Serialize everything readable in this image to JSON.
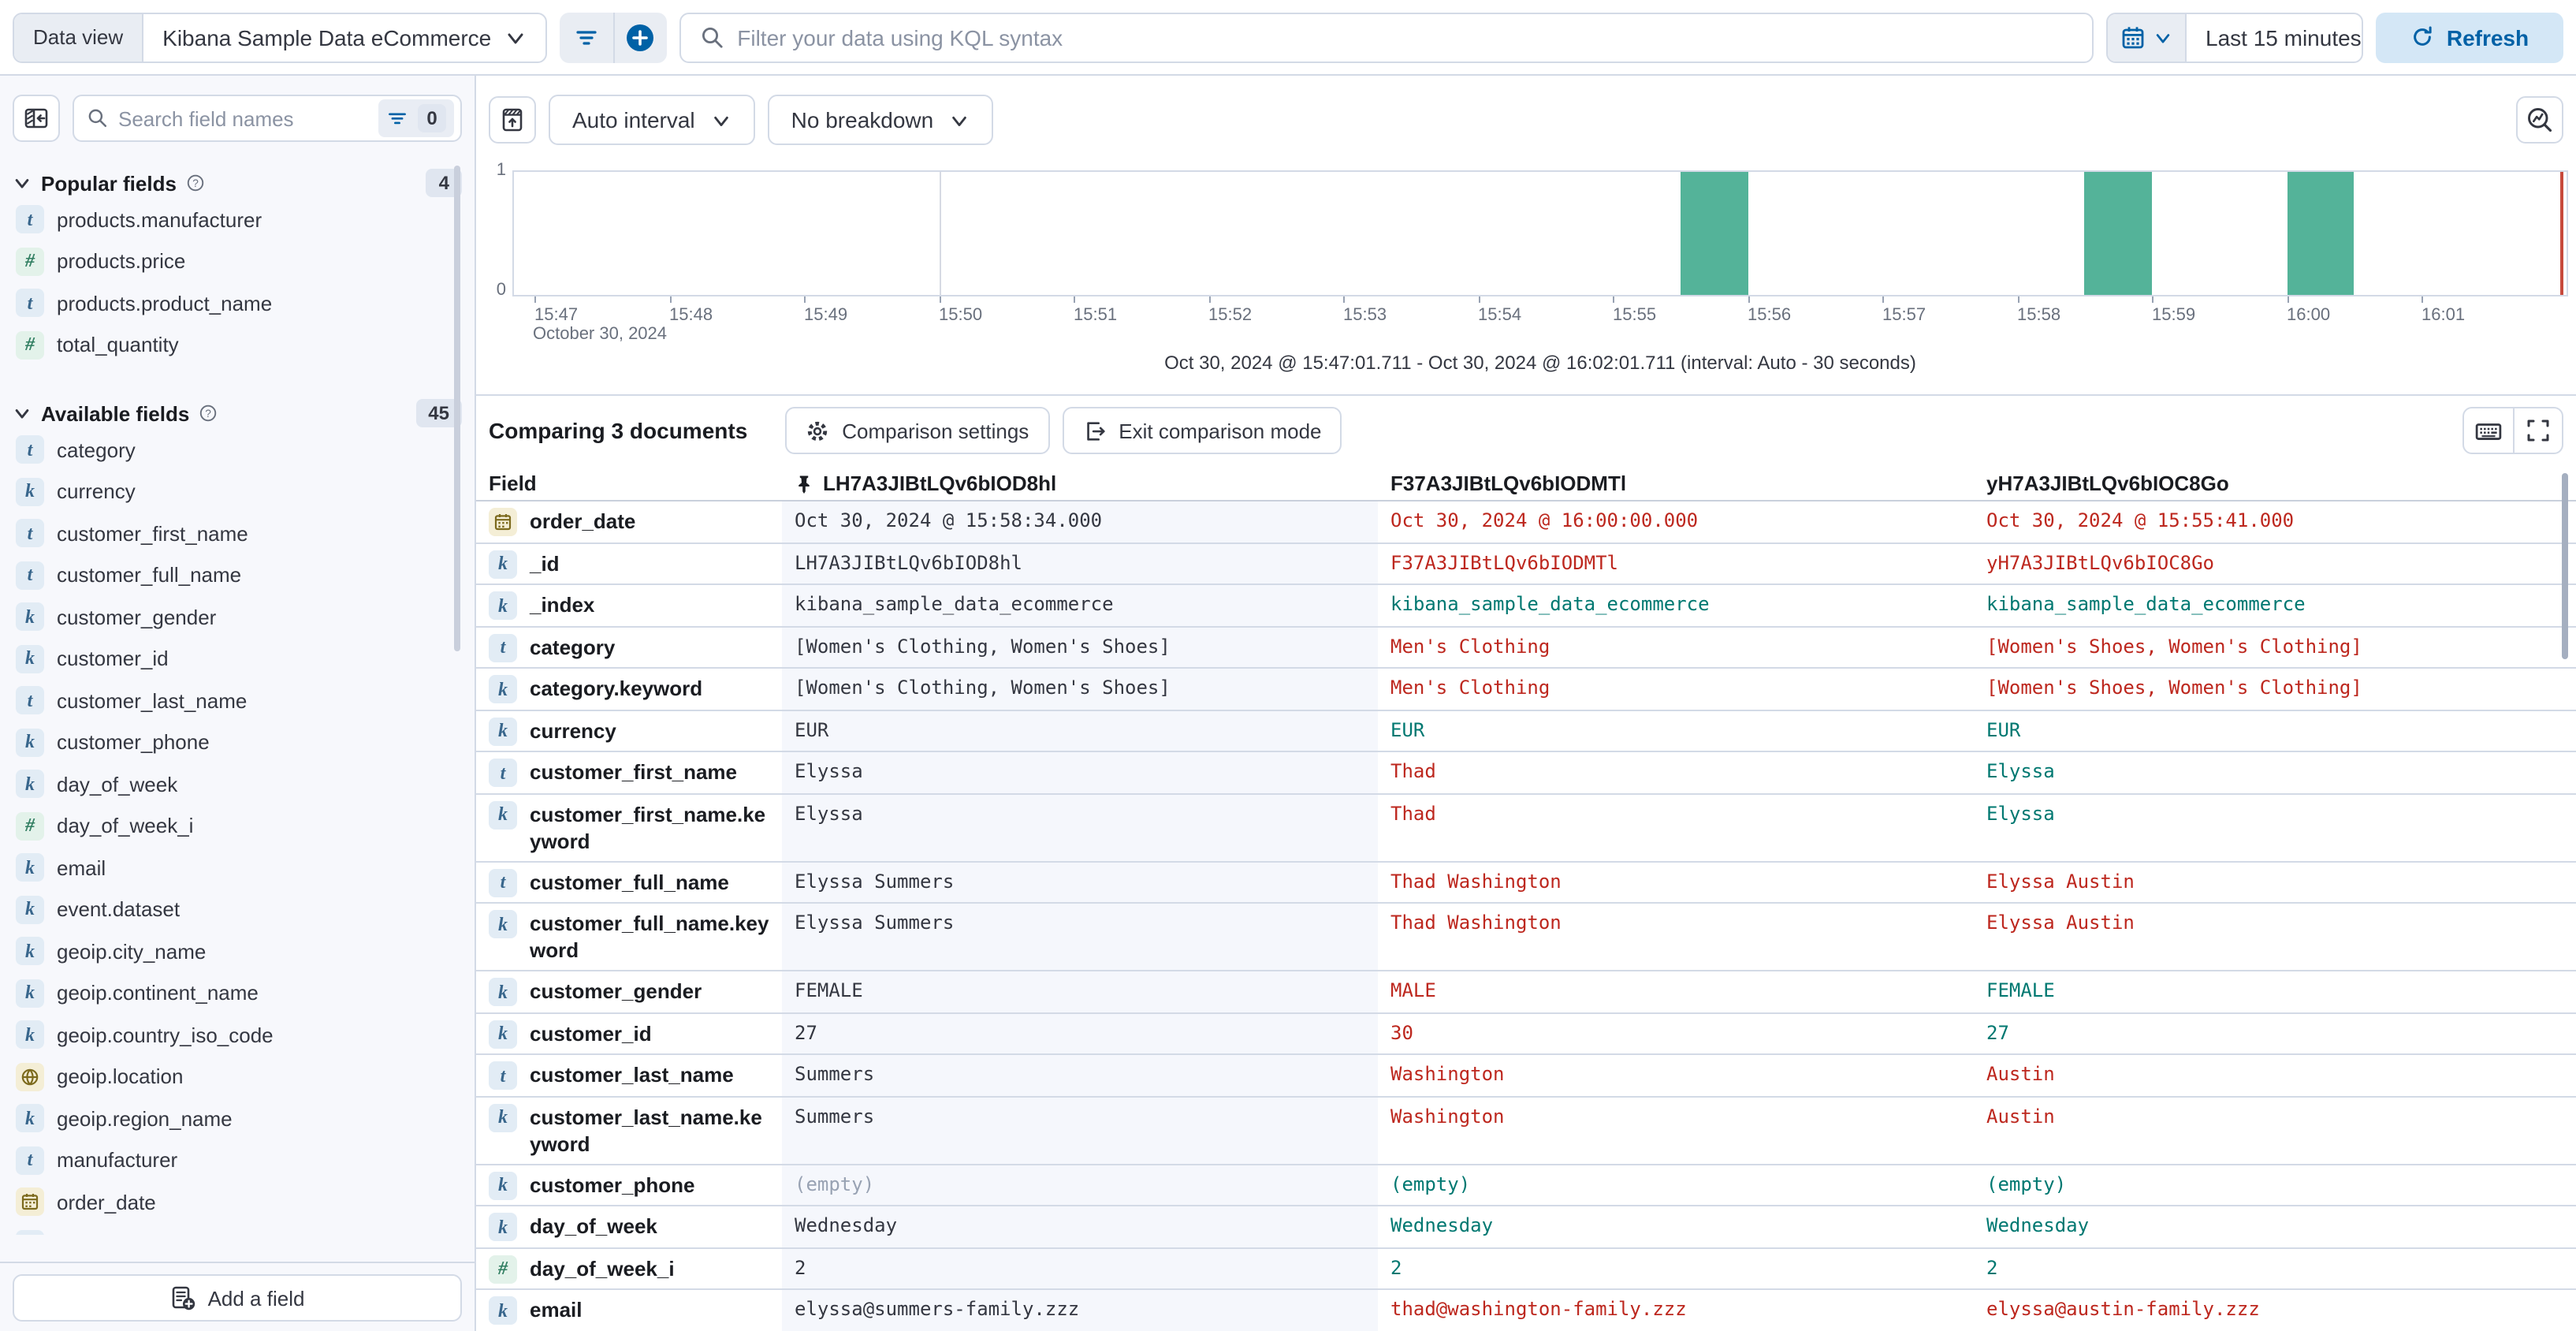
{
  "topbar": {
    "data_view_label": "Data view",
    "data_view_value": "Kibana Sample Data eCommerce",
    "kql_placeholder": "Filter your data using KQL syntax",
    "time_range": "Last 15 minutes",
    "refresh_label": "Refresh"
  },
  "sidebar": {
    "search_placeholder": "Search field names",
    "filter_count": "0",
    "popular": {
      "title": "Popular fields",
      "count": "4",
      "items": [
        {
          "icon": "t",
          "label": "products.manufacturer"
        },
        {
          "icon": "num",
          "label": "products.price"
        },
        {
          "icon": "t",
          "label": "products.product_name"
        },
        {
          "icon": "num",
          "label": "total_quantity"
        }
      ]
    },
    "available": {
      "title": "Available fields",
      "count": "45",
      "items": [
        {
          "icon": "t",
          "label": "category"
        },
        {
          "icon": "k",
          "label": "currency"
        },
        {
          "icon": "t",
          "label": "customer_first_name"
        },
        {
          "icon": "t",
          "label": "customer_full_name"
        },
        {
          "icon": "k",
          "label": "customer_gender"
        },
        {
          "icon": "k",
          "label": "customer_id"
        },
        {
          "icon": "t",
          "label": "customer_last_name"
        },
        {
          "icon": "k",
          "label": "customer_phone"
        },
        {
          "icon": "k",
          "label": "day_of_week"
        },
        {
          "icon": "num",
          "label": "day_of_week_i"
        },
        {
          "icon": "k",
          "label": "email"
        },
        {
          "icon": "k",
          "label": "event.dataset"
        },
        {
          "icon": "k",
          "label": "geoip.city_name"
        },
        {
          "icon": "k",
          "label": "geoip.continent_name"
        },
        {
          "icon": "k",
          "label": "geoip.country_iso_code"
        },
        {
          "icon": "geo",
          "label": "geoip.location"
        },
        {
          "icon": "k",
          "label": "geoip.region_name"
        },
        {
          "icon": "t",
          "label": "manufacturer"
        },
        {
          "icon": "date",
          "label": "order_date"
        },
        {
          "icon": "k",
          "label": ""
        }
      ]
    },
    "add_field_label": "Add a field"
  },
  "chart": {
    "auto_interval_label": "Auto interval",
    "no_breakdown_label": "No breakdown",
    "chart_data": {
      "type": "bar",
      "x_ticks": [
        "15:47",
        "15:48",
        "15:49",
        "15:50",
        "15:51",
        "15:52",
        "15:53",
        "15:54",
        "15:55",
        "15:56",
        "15:57",
        "15:58",
        "15:59",
        "16:00",
        "16:01"
      ],
      "x_date_label": "October 30, 2024",
      "y_max_label": "1",
      "y_min_label": "0",
      "ylim": [
        0,
        1
      ],
      "bars": [
        {
          "time": "15:55:30",
          "value": 1
        },
        {
          "time": "15:58:30",
          "value": 1
        },
        {
          "time": "16:00:00",
          "value": 1
        }
      ],
      "bar_color": "#54B399",
      "gridlines": [
        "15:50",
        "16:00"
      ],
      "interval_caption": "Oct 30, 2024 @ 15:47:01.711 - Oct 30, 2024 @ 16:02:01.711 (interval: Auto - 30 seconds)"
    }
  },
  "compare": {
    "title": "Comparing 3 documents",
    "settings_label": "Comparison settings",
    "exit_label": "Exit comparison mode"
  },
  "table": {
    "field_header": "Field",
    "doc_headers": [
      "LH7A3JIBtLQv6bIOD8hl",
      "F37A3JIBtLQv6bIODMTl",
      "yH7A3JIBtLQv6bIOC8Go"
    ],
    "rows": [
      {
        "field": "order_date",
        "icon": "date",
        "wrap": false,
        "cells": [
          {
            "v": "Oct 30, 2024 @ 15:58:34.000",
            "s": "base"
          },
          {
            "v": "Oct 30, 2024 @ 16:00:00.000",
            "s": "diff"
          },
          {
            "v": "Oct 30, 2024 @ 15:55:41.000",
            "s": "diff"
          }
        ]
      },
      {
        "field": "_id",
        "icon": "k",
        "wrap": false,
        "cells": [
          {
            "v": "LH7A3JIBtLQv6bIOD8hl",
            "s": "base"
          },
          {
            "v": "F37A3JIBtLQv6bIODMTl",
            "s": "diff"
          },
          {
            "v": "yH7A3JIBtLQv6bIOC8Go",
            "s": "diff"
          }
        ]
      },
      {
        "field": "_index",
        "icon": "k",
        "wrap": false,
        "cells": [
          {
            "v": "kibana_sample_data_ecommerce",
            "s": "base"
          },
          {
            "v": "kibana_sample_data_ecommerce",
            "s": "same"
          },
          {
            "v": "kibana_sample_data_ecommerce",
            "s": "same"
          }
        ]
      },
      {
        "field": "category",
        "icon": "t",
        "wrap": false,
        "cells": [
          {
            "v": "[Women's Clothing, Women's Shoes]",
            "s": "base"
          },
          {
            "v": "Men's Clothing",
            "s": "diff"
          },
          {
            "v": "[Women's Shoes, Women's Clothing]",
            "s": "diff"
          }
        ]
      },
      {
        "field": "category.keyword",
        "icon": "k",
        "wrap": false,
        "cells": [
          {
            "v": "[Women's Clothing, Women's Shoes]",
            "s": "base"
          },
          {
            "v": "Men's Clothing",
            "s": "diff"
          },
          {
            "v": "[Women's Shoes, Women's Clothing]",
            "s": "diff"
          }
        ]
      },
      {
        "field": "currency",
        "icon": "k",
        "wrap": false,
        "cells": [
          {
            "v": "EUR",
            "s": "base"
          },
          {
            "v": "EUR",
            "s": "same"
          },
          {
            "v": "EUR",
            "s": "same"
          }
        ]
      },
      {
        "field": "customer_first_name",
        "icon": "t",
        "wrap": false,
        "cells": [
          {
            "v": "Elyssa",
            "s": "base"
          },
          {
            "v": "Thad",
            "s": "diff"
          },
          {
            "v": "Elyssa",
            "s": "same"
          }
        ]
      },
      {
        "field": "customer_first_name.keyword",
        "icon": "k",
        "wrap": true,
        "cells": [
          {
            "v": "Elyssa",
            "s": "base"
          },
          {
            "v": "Thad",
            "s": "diff"
          },
          {
            "v": "Elyssa",
            "s": "same"
          }
        ]
      },
      {
        "field": "customer_full_name",
        "icon": "t",
        "wrap": false,
        "cells": [
          {
            "v": "Elyssa Summers",
            "s": "base"
          },
          {
            "v": "Thad Washington",
            "s": "diff"
          },
          {
            "v": "Elyssa Austin",
            "s": "diff"
          }
        ]
      },
      {
        "field": "customer_full_name.keyword",
        "icon": "k",
        "wrap": true,
        "cells": [
          {
            "v": "Elyssa Summers",
            "s": "base"
          },
          {
            "v": "Thad Washington",
            "s": "diff"
          },
          {
            "v": "Elyssa Austin",
            "s": "diff"
          }
        ]
      },
      {
        "field": "customer_gender",
        "icon": "k",
        "wrap": false,
        "cells": [
          {
            "v": "FEMALE",
            "s": "base"
          },
          {
            "v": "MALE",
            "s": "diff"
          },
          {
            "v": "FEMALE",
            "s": "same"
          }
        ]
      },
      {
        "field": "customer_id",
        "icon": "k",
        "wrap": false,
        "cells": [
          {
            "v": "27",
            "s": "base"
          },
          {
            "v": "30",
            "s": "diff"
          },
          {
            "v": "27",
            "s": "same"
          }
        ]
      },
      {
        "field": "customer_last_name",
        "icon": "t",
        "wrap": false,
        "cells": [
          {
            "v": "Summers",
            "s": "base"
          },
          {
            "v": "Washington",
            "s": "diff"
          },
          {
            "v": "Austin",
            "s": "diff"
          }
        ]
      },
      {
        "field": "customer_last_name.keyword",
        "icon": "k",
        "wrap": true,
        "cells": [
          {
            "v": "Summers",
            "s": "base"
          },
          {
            "v": "Washington",
            "s": "diff"
          },
          {
            "v": "Austin",
            "s": "diff"
          }
        ]
      },
      {
        "field": "customer_phone",
        "icon": "k",
        "wrap": false,
        "cells": [
          {
            "v": "(empty)",
            "s": "muted"
          },
          {
            "v": "(empty)",
            "s": "same"
          },
          {
            "v": "(empty)",
            "s": "same"
          }
        ]
      },
      {
        "field": "day_of_week",
        "icon": "k",
        "wrap": false,
        "cells": [
          {
            "v": "Wednesday",
            "s": "base"
          },
          {
            "v": "Wednesday",
            "s": "same"
          },
          {
            "v": "Wednesday",
            "s": "same"
          }
        ]
      },
      {
        "field": "day_of_week_i",
        "icon": "num",
        "wrap": false,
        "cells": [
          {
            "v": "2",
            "s": "base"
          },
          {
            "v": "2",
            "s": "same"
          },
          {
            "v": "2",
            "s": "same"
          }
        ]
      },
      {
        "field": "email",
        "icon": "k",
        "wrap": false,
        "cells": [
          {
            "v": "elyssa@summers-family.zzz",
            "s": "base"
          },
          {
            "v": "thad@washington-family.zzz",
            "s": "diff"
          },
          {
            "v": "elyssa@austin-family.zzz",
            "s": "diff"
          }
        ]
      }
    ]
  }
}
